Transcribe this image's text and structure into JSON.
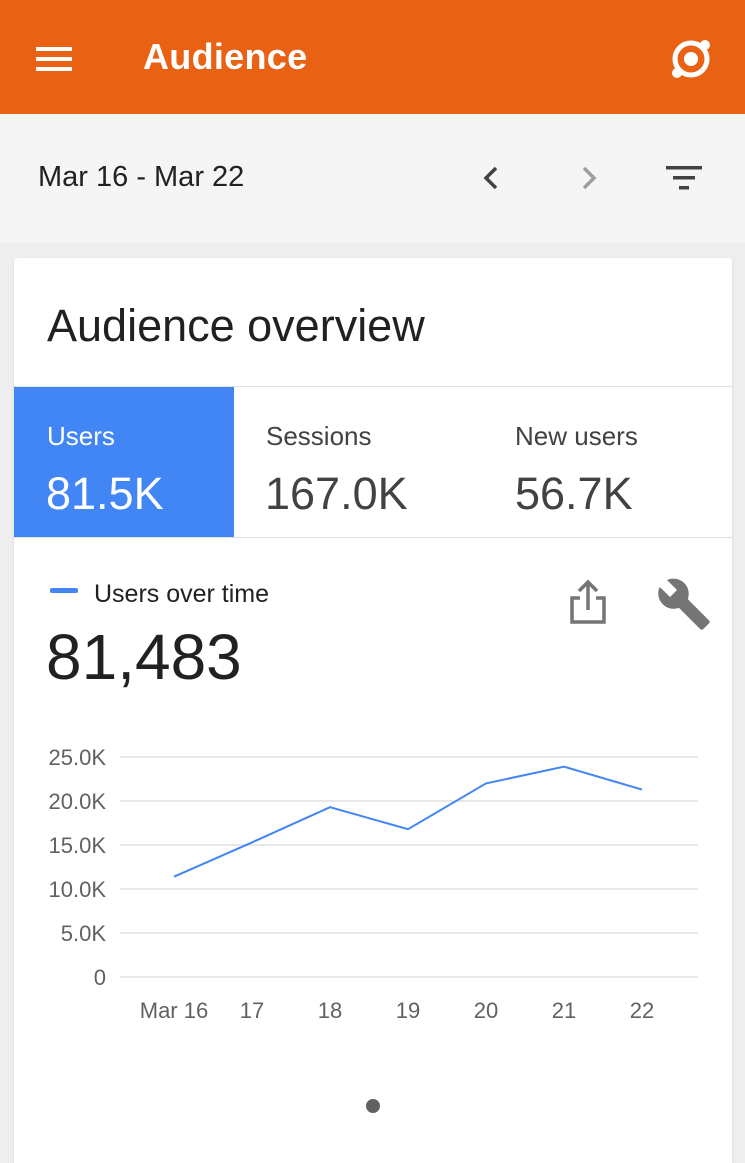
{
  "appbar": {
    "title": "Audience",
    "menu_icon": "hamburger-menu-icon",
    "account_icon": "account-switcher-icon",
    "color": "#e96213"
  },
  "datebar": {
    "range": "Mar 16 - Mar 22",
    "prev_icon": "chevron-left-icon",
    "next_icon": "chevron-right-icon",
    "filter_icon": "filter-icon"
  },
  "card": {
    "title": "Audience overview",
    "metrics": [
      {
        "label": "Users",
        "value": "81.5K",
        "active": true
      },
      {
        "label": "Sessions",
        "value": "167.0K",
        "active": false
      },
      {
        "label": "New users",
        "value": "56.7K",
        "active": false
      }
    ],
    "legend_label": "Users over time",
    "total": "81,483",
    "accent": "#4285f4",
    "page_indicator": {
      "current": 1,
      "total": 1
    }
  },
  "chart_data": {
    "type": "line",
    "categories": [
      "Mar 16",
      "17",
      "18",
      "19",
      "20",
      "21",
      "22"
    ],
    "series": [
      {
        "values": [
          11400,
          15300,
          19300,
          16800,
          22000,
          23900,
          21300
        ]
      }
    ],
    "y_ticks": [
      "0",
      "5.0K",
      "10.0K",
      "15.0K",
      "20.0K",
      "25.0K"
    ],
    "y_tick_values": [
      0,
      5000,
      10000,
      15000,
      20000,
      25000
    ],
    "ylim": [
      0,
      25000
    ],
    "grid": true,
    "legend": "top-left",
    "color": "#4285f4"
  }
}
